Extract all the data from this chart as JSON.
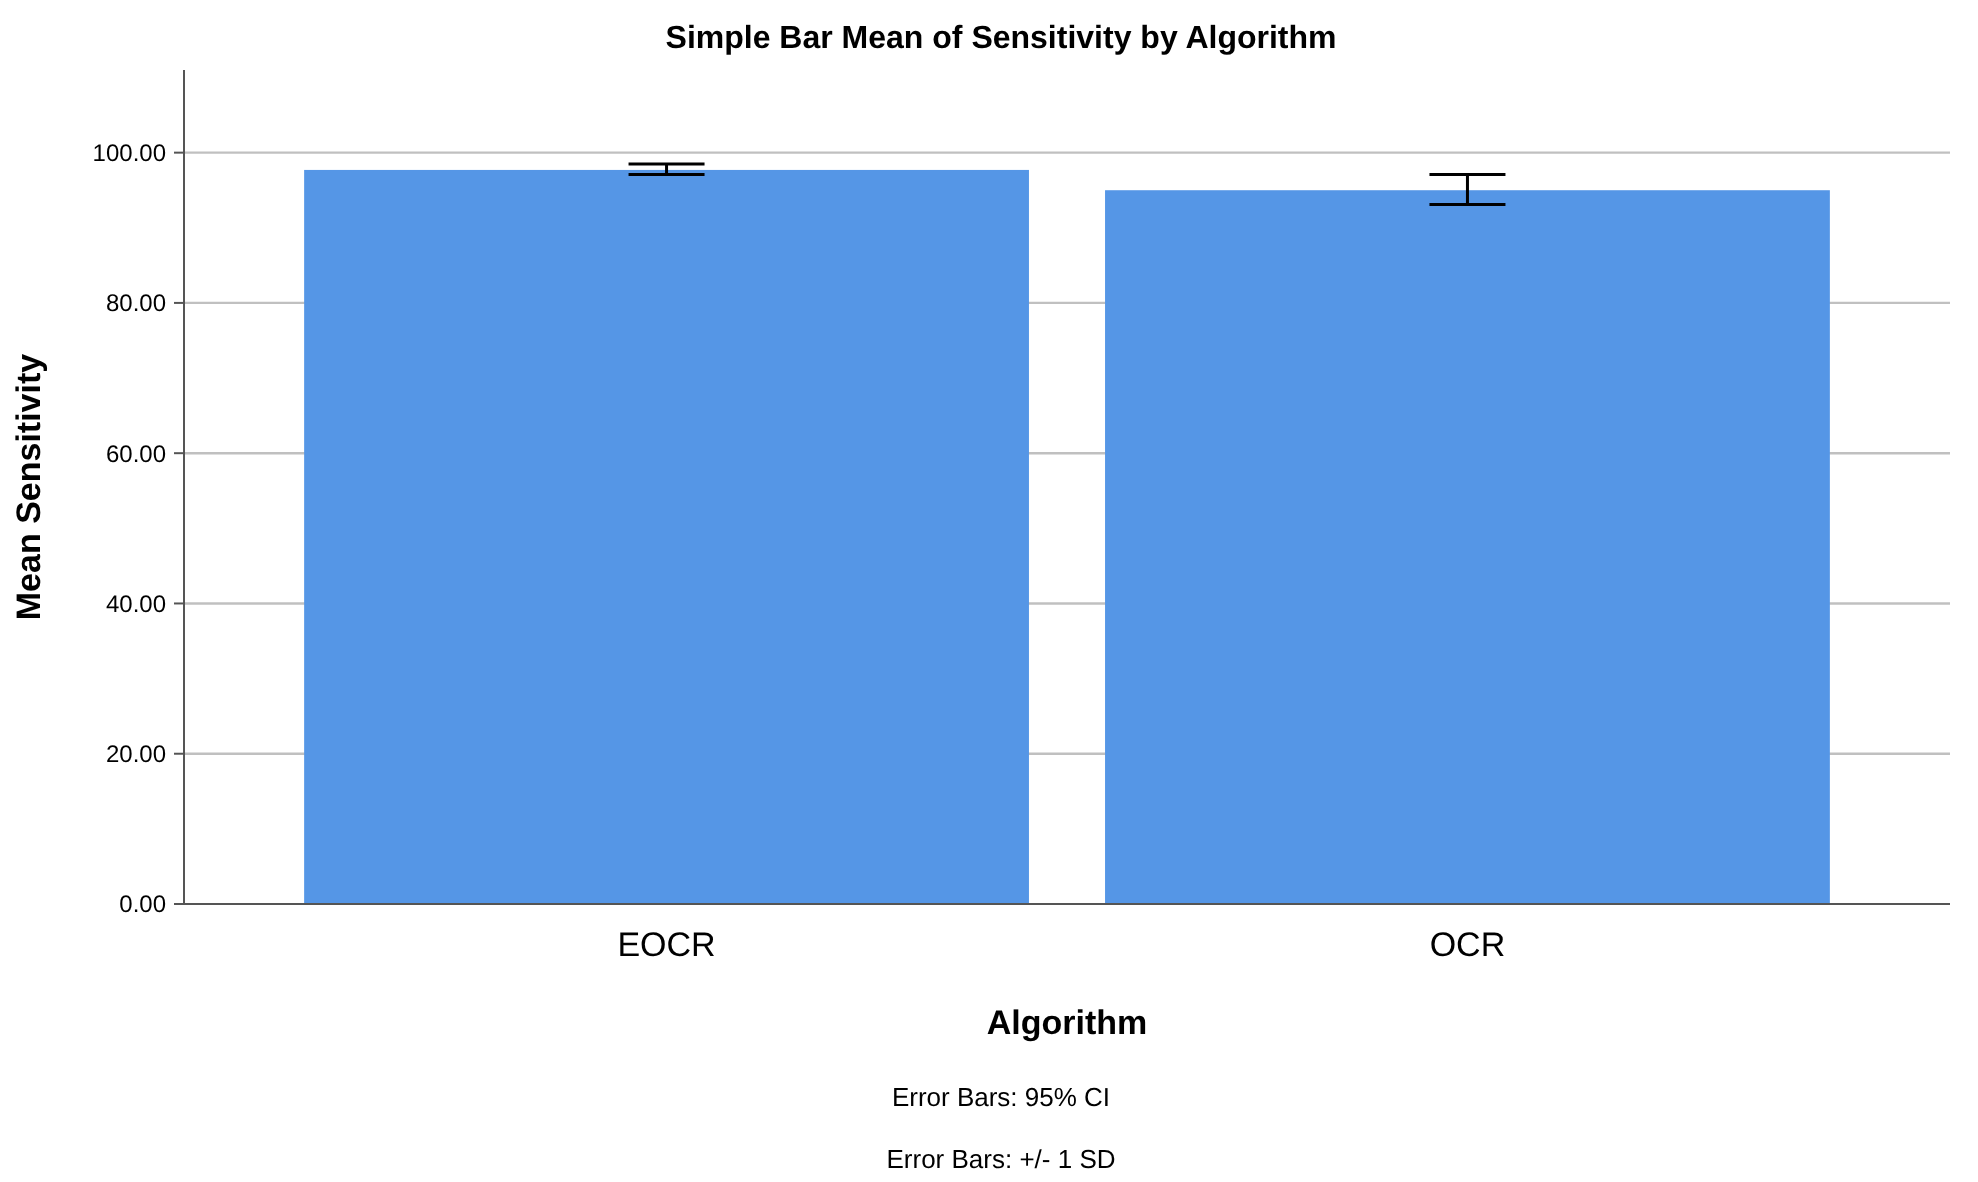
{
  "chart_data": {
    "type": "bar",
    "title": "Simple Bar Mean of Sensitivity by Algorithm",
    "xlabel": "Algorithm",
    "ylabel": "Mean Sensitivity",
    "categories": [
      "EOCR",
      "OCR"
    ],
    "values": [
      97.7,
      95.0
    ],
    "color": "#5596e6",
    "errors": [
      [
        97.1,
        98.5
      ],
      [
        93.1,
        97.1
      ]
    ],
    "ylim": [
      0,
      111
    ],
    "yticks": [
      {
        "value": 0,
        "label": "0.00"
      },
      {
        "value": 20,
        "label": "20.00"
      },
      {
        "value": 40,
        "label": "40.00"
      },
      {
        "value": 60,
        "label": "60.00"
      },
      {
        "value": 80,
        "label": "80.00"
      },
      {
        "value": 100,
        "label": "100.00"
      }
    ],
    "grid": "y",
    "annotations": [
      "Error Bars: 95% CI",
      "Error Bars: +/- 1 SD"
    ]
  }
}
